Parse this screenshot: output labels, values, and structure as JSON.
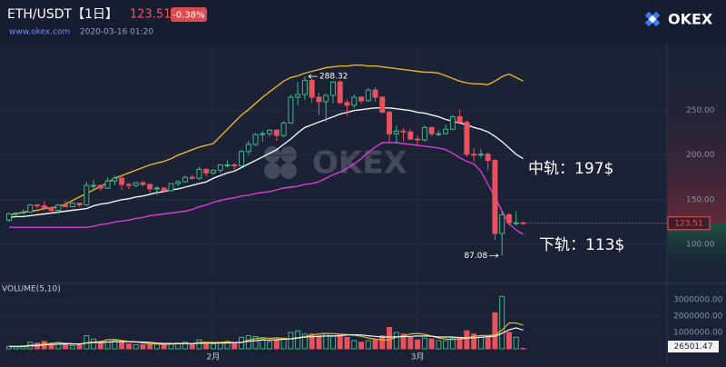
{
  "header": {
    "pair": "ETH/USDT【1日】",
    "change": "-0.38%",
    "site": "www.okex.com",
    "datetime": "2020-03-16 01:20",
    "brand": "OKEX"
  },
  "chart_data": {
    "type": "candlestick",
    "categories": [
      null,
      null,
      null,
      null,
      null,
      null,
      null,
      null,
      null,
      null,
      null,
      null,
      null,
      null,
      null,
      null,
      null,
      null,
      null,
      null,
      null,
      null,
      null,
      null,
      null,
      null,
      null,
      null,
      null,
      "2月",
      null,
      null,
      null,
      null,
      null,
      null,
      null,
      null,
      null,
      null,
      null,
      null,
      null,
      null,
      null,
      null,
      null,
      null,
      null,
      null,
      null,
      null,
      null,
      null,
      null,
      null,
      null,
      null,
      "3月",
      null,
      null,
      null,
      null,
      null,
      null,
      null,
      null,
      null,
      null,
      null,
      null,
      null,
      null,
      null
    ],
    "open": [
      127,
      134,
      135,
      136,
      144,
      143,
      141,
      138,
      144,
      142,
      146,
      144,
      166,
      166,
      163,
      171,
      174,
      167,
      166,
      169,
      167,
      162,
      163,
      160,
      168,
      170,
      175,
      174,
      184,
      180,
      183,
      189,
      189,
      188,
      204,
      212,
      223,
      224,
      228,
      222,
      236,
      265,
      268,
      284,
      265,
      260,
      267,
      282,
      259,
      256,
      265,
      261,
      273,
      265,
      248,
      224,
      227,
      226,
      218,
      217,
      231,
      224,
      224,
      229,
      243,
      237,
      201,
      200,
      201,
      194,
      112,
      133,
      124,
      124
    ],
    "high": [
      135,
      136,
      139,
      145,
      145,
      148,
      142,
      145,
      149,
      147,
      146,
      170,
      172,
      167,
      175,
      177,
      178,
      169,
      170,
      171,
      168,
      165,
      164,
      168,
      172,
      177,
      178,
      187,
      185,
      184,
      190,
      194,
      191,
      206,
      216,
      225,
      227,
      229,
      229,
      238,
      268,
      282,
      288.32,
      286,
      270,
      269,
      283,
      284,
      263,
      268,
      266,
      275,
      276,
      266,
      250,
      233,
      230,
      229,
      222,
      233,
      232,
      228,
      234,
      245,
      251,
      239,
      208,
      207,
      203,
      196,
      137,
      135,
      137,
      125
    ],
    "low": [
      125,
      132,
      134,
      135,
      140,
      138,
      135,
      134,
      142,
      141,
      142,
      143,
      161,
      160,
      162,
      166,
      161,
      162,
      164,
      165,
      158,
      155,
      158,
      159,
      165,
      169,
      172,
      172,
      176,
      178,
      180,
      186,
      184,
      187,
      200,
      210,
      215,
      221,
      216,
      220,
      235,
      256,
      262,
      259,
      245,
      237,
      258,
      257,
      244,
      253,
      258,
      260,
      260,
      247,
      215,
      213,
      215,
      217,
      211,
      215,
      221,
      221,
      223,
      228,
      236,
      198,
      193,
      197,
      183,
      105,
      87.08,
      121,
      121,
      122
    ],
    "close": [
      134,
      135,
      136,
      144,
      143,
      141,
      138,
      144,
      142,
      146,
      144,
      166,
      166,
      163,
      171,
      174,
      167,
      166,
      169,
      167,
      162,
      163,
      160,
      168,
      170,
      175,
      174,
      184,
      180,
      183,
      189,
      189,
      188,
      204,
      212,
      223,
      224,
      228,
      222,
      236,
      265,
      268,
      284,
      265,
      260,
      267,
      282,
      259,
      256,
      265,
      261,
      273,
      265,
      248,
      224,
      227,
      226,
      218,
      217,
      231,
      224,
      224,
      229,
      243,
      237,
      201,
      200,
      201,
      194,
      112,
      133,
      124,
      124,
      123.51
    ],
    "up_color": "#3fb68b",
    "down_color": "#e9525c",
    "series": [
      {
        "color": "#e6b422",
        "values": [
          133,
          134,
          136,
          137,
          138,
          140,
          141,
          142,
          145,
          149,
          153,
          157,
          161,
          165,
          169,
          174,
          177,
          180,
          183,
          186,
          189,
          191,
          193,
          196,
          200,
          203,
          206,
          209,
          211,
          213,
          221,
          229,
          237,
          245,
          251,
          258,
          265,
          271,
          277,
          283,
          287,
          289,
          292,
          294,
          296,
          298,
          299,
          300,
          300,
          301,
          301,
          300,
          300,
          299,
          298,
          297,
          296,
          295,
          294,
          293,
          293,
          292,
          289,
          286,
          283,
          281,
          280,
          280,
          279,
          283,
          288,
          291,
          287,
          283
        ]
      },
      {
        "color": "#f2f2f2",
        "values": [
          130,
          131,
          131,
          132,
          133,
          134,
          135,
          136,
          137,
          138,
          139,
          140,
          143,
          145,
          146,
          148,
          150,
          151,
          153,
          154,
          156,
          158,
          159,
          161,
          162,
          164,
          166,
          168,
          170,
          174,
          177,
          180,
          182,
          186,
          190,
          194,
          198,
          202,
          206,
          212,
          218,
          225,
          231,
          234,
          237,
          240,
          243,
          246,
          248,
          250,
          251,
          252,
          253,
          253,
          253,
          252,
          251,
          250,
          248,
          247,
          245,
          243,
          240,
          238,
          236,
          234,
          231,
          229,
          226,
          221,
          215,
          208,
          201,
          196
        ]
      },
      {
        "color": "#d63ed6",
        "values": [
          119,
          119,
          119,
          119,
          119,
          119,
          119,
          119,
          119,
          119,
          119,
          119,
          120,
          122,
          123,
          125,
          126,
          127,
          129,
          130,
          132,
          133,
          134,
          135,
          136,
          137,
          139,
          142,
          144,
          147,
          149,
          151,
          152,
          154,
          155,
          157,
          158,
          159,
          161,
          163,
          164,
          165,
          167,
          168,
          170,
          174,
          178,
          181,
          185,
          190,
          196,
          203,
          209,
          214,
          214,
          214,
          213,
          212,
          211,
          210,
          209,
          208,
          206,
          202,
          197,
          193,
          190,
          182,
          167,
          153,
          137,
          123,
          116,
          111
        ]
      }
    ],
    "ylim": [
      58,
      318
    ],
    "yticks": [
      {
        "value": 100,
        "label": "100.00"
      },
      {
        "value": 150,
        "label": "150.00"
      },
      {
        "value": 200,
        "label": "200.00"
      },
      {
        "value": 250,
        "label": "250.00"
      }
    ],
    "grid": true,
    "annotations": [
      "中轨：197$",
      "下轨：113$"
    ],
    "volume": {
      "label": "VOLUME(5,10)",
      "values": [
        150000,
        120000,
        180000,
        400000,
        350000,
        450000,
        300000,
        380000,
        250000,
        200000,
        220000,
        800000,
        600000,
        400000,
        550000,
        500000,
        500000,
        300000,
        250000,
        250000,
        300000,
        350000,
        250000,
        300000,
        350000,
        400000,
        300000,
        550000,
        400000,
        300000,
        400000,
        450000,
        350000,
        700000,
        800000,
        750000,
        600000,
        450000,
        550000,
        650000,
        1000000,
        1100000,
        900000,
        900000,
        800000,
        950000,
        800000,
        900000,
        700000,
        500000,
        400000,
        500000,
        550000,
        800000,
        1300000,
        1000000,
        900000,
        700000,
        550000,
        650000,
        600000,
        500000,
        500000,
        650000,
        700000,
        1100000,
        900000,
        700000,
        800000,
        2200000,
        3200000,
        1000000,
        700000,
        26501.47
      ],
      "series": [
        {
          "color": "#e6b422",
          "values": [
            150000,
            150000,
            160000,
            220000,
            240000,
            300000,
            340000,
            376000,
            346000,
            316000,
            270000,
            370000,
            414000,
            444000,
            554000,
            570000,
            510000,
            450000,
            420000,
            360000,
            320000,
            290000,
            280000,
            290000,
            310000,
            330000,
            320000,
            380000,
            400000,
            390000,
            390000,
            420000,
            380000,
            380000,
            540000,
            620000,
            680000,
            640000,
            670000,
            630000,
            600000,
            650000,
            750000,
            840000,
            910000,
            940000,
            930000,
            890000,
            870000,
            830000,
            770000,
            660000,
            600000,
            530000,
            550000,
            710000,
            770000,
            910000,
            940000,
            890000,
            780000,
            660000,
            600000,
            560000,
            600000,
            630000,
            770000,
            810000,
            810000,
            840000,
            1140000,
            1580000,
            1580000,
            1445300
          ]
        },
        {
          "color": "#f2f2f2",
          "values": [
            150000,
            150000,
            150000,
            180000,
            200000,
            240000,
            260000,
            290000,
            300000,
            300000,
            300000,
            350000,
            390000,
            390000,
            410000,
            430000,
            440000,
            430000,
            420000,
            410000,
            400000,
            350000,
            330000,
            330000,
            320000,
            330000,
            320000,
            340000,
            350000,
            350000,
            350000,
            360000,
            380000,
            400000,
            460000,
            500000,
            540000,
            540000,
            560000,
            580000,
            610000,
            670000,
            710000,
            740000,
            760000,
            780000,
            780000,
            800000,
            850000,
            860000,
            850000,
            800000,
            760000,
            720000,
            720000,
            730000,
            750000,
            760000,
            780000,
            790000,
            770000,
            720000,
            720000,
            720000,
            680000,
            670000,
            670000,
            710000,
            740000,
            770000,
            950000,
            1160000,
            1280000,
            1140000
          ]
        }
      ],
      "ylim": [
        0,
        3550000
      ],
      "yticks": [
        {
          "value": 1000000,
          "label": "1000000.00"
        },
        {
          "value": 2000000,
          "label": "2000000.00"
        },
        {
          "value": 3000000,
          "label": "3000000.00"
        }
      ]
    }
  }
}
